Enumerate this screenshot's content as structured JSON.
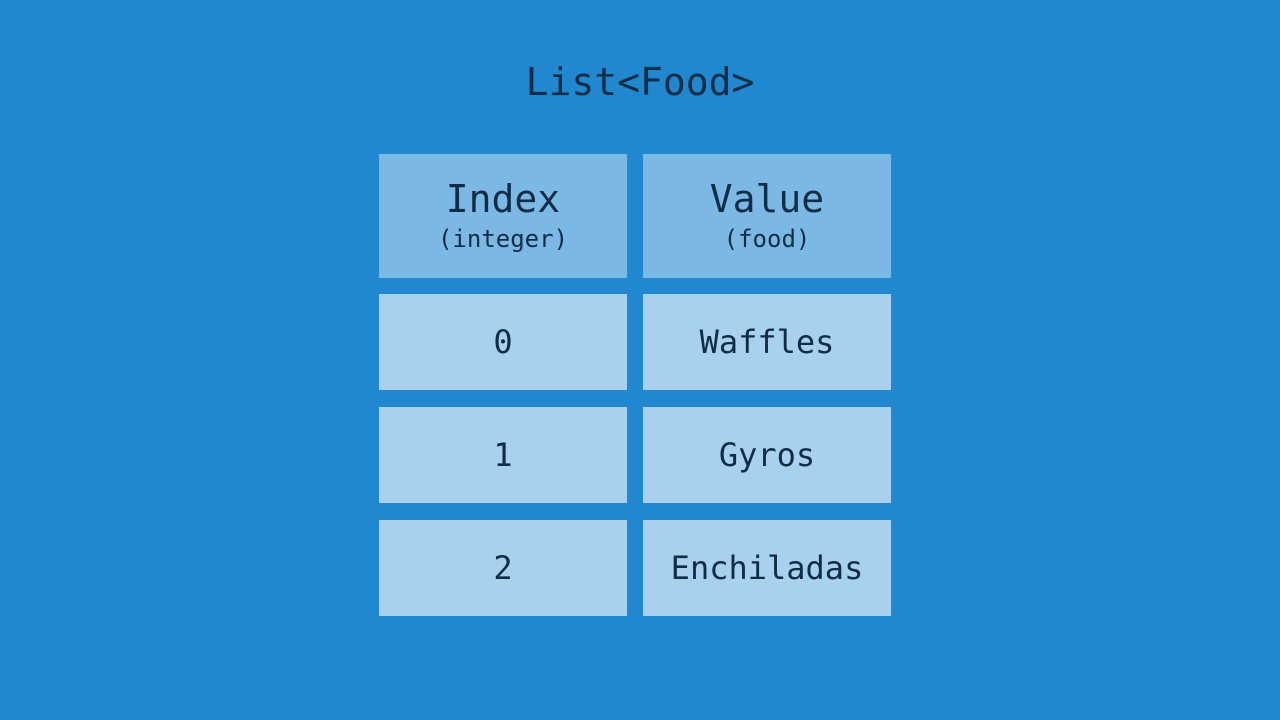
{
  "title": "List<Food>",
  "headers": [
    {
      "label": "Index",
      "type": "(integer)"
    },
    {
      "label": "Value",
      "type": "(food)"
    }
  ],
  "rows": [
    {
      "index": "0",
      "value": "Waffles"
    },
    {
      "index": "1",
      "value": "Gyros"
    },
    {
      "index": "2",
      "value": "Enchiladas"
    }
  ],
  "colors": {
    "background": "#2188cf",
    "header": "#7bb8e4",
    "row": "#a9d0ec",
    "text": "#0e2d47"
  }
}
